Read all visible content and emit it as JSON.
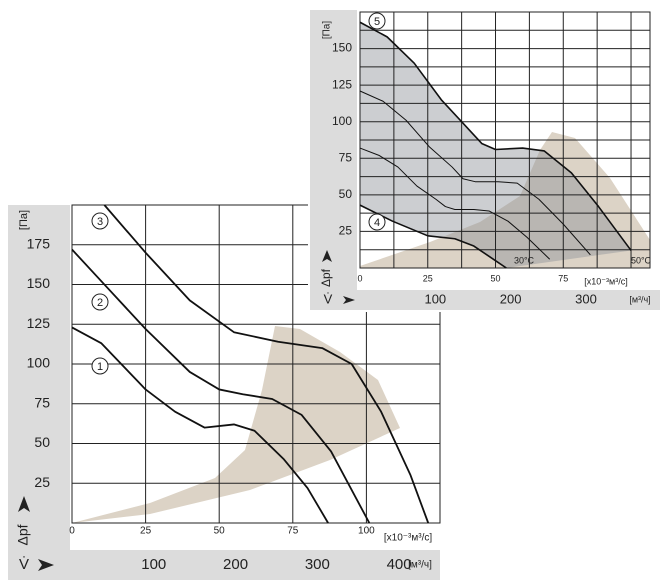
{
  "chart_data": [
    {
      "type": "line",
      "ylabel": "[Па]",
      "ylabel2": "Δpf",
      "xlabel": "[x10⁻³м³/с]",
      "xlabel2": "V̇",
      "x2label": "[м³/ч]",
      "xlim": [
        0,
        125
      ],
      "ylim": [
        0,
        200
      ],
      "x2lim": [
        0,
        450
      ],
      "xticks": [
        0,
        25,
        50,
        75,
        100
      ],
      "yticks": [
        25,
        50,
        75,
        100,
        125,
        150,
        175
      ],
      "x2ticks": [
        100,
        200,
        300,
        400
      ],
      "xgrid": [
        25,
        50,
        75,
        100
      ],
      "ygrid": [
        25,
        50,
        75,
        100,
        125,
        150,
        175
      ],
      "series": [
        {
          "name": "1",
          "color": "#111",
          "x": [
            0,
            10,
            25,
            35,
            45,
            55,
            62,
            72,
            80,
            87
          ],
          "values": [
            123,
            113,
            84,
            70,
            60,
            62,
            58,
            40,
            22,
            0
          ]
        },
        {
          "name": "2",
          "color": "#111",
          "x": [
            0,
            12,
            25,
            40,
            50,
            58,
            68,
            78,
            88,
            101
          ],
          "values": [
            172,
            148,
            122,
            95,
            84,
            81,
            78,
            68,
            45,
            0
          ]
        },
        {
          "name": "3",
          "color": "#111",
          "x": [
            11,
            25,
            40,
            55,
            70,
            85,
            95,
            105,
            115,
            121
          ],
          "values": [
            200,
            170,
            140,
            120,
            114,
            110,
            100,
            70,
            30,
            0
          ]
        }
      ]
    },
    {
      "type": "line",
      "ylabel": "[Па]",
      "ylabel2": "Δpf",
      "xlabel": "[x10⁻³м³/с]",
      "xlabel2": "V̇",
      "x2label": "[м³/ч]",
      "xlim": [
        0,
        107
      ],
      "ylim": [
        0,
        175
      ],
      "x2lim": [
        0,
        385
      ],
      "xticks": [
        0,
        25,
        50,
        75
      ],
      "yticks": [
        25,
        50,
        75,
        100,
        125,
        150
      ],
      "x2ticks": [
        100,
        200,
        300
      ],
      "xgrid": [
        12.5,
        25,
        37.5,
        50,
        62.5,
        75,
        87.5,
        100
      ],
      "ygrid": [
        12.5,
        25,
        37.5,
        50,
        62.5,
        75,
        87.5,
        100,
        112.5,
        125,
        137.5,
        150,
        162.5
      ],
      "annotations": [
        "30°C",
        "50°C"
      ],
      "series": [
        {
          "name": "5",
          "color": "#111",
          "x": [
            0,
            10,
            20,
            30,
            40,
            45,
            50,
            60,
            68,
            78,
            88,
            100
          ],
          "values": [
            168,
            158,
            140,
            115,
            95,
            85,
            81,
            82,
            80,
            65,
            42,
            12
          ]
        },
        {
          "color": "#111",
          "x": [
            0,
            8.5,
            17,
            25.5,
            34,
            38,
            42.5,
            51,
            58,
            66,
            75,
            85
          ],
          "values": [
            121,
            114,
            101,
            83,
            69,
            61,
            59,
            59,
            58,
            47,
            30,
            9
          ]
        },
        {
          "color": "#111",
          "x": [
            0,
            7,
            14,
            21,
            28,
            31.5,
            35,
            42,
            47.6,
            54.6,
            61.6,
            70
          ],
          "values": [
            82,
            77,
            69,
            56,
            47,
            42,
            40,
            40,
            39,
            32,
            21,
            6
          ]
        },
        {
          "name": "4",
          "color": "#111",
          "x": [
            0,
            12,
            25,
            35,
            42,
            50,
            54
          ],
          "values": [
            43,
            32,
            22,
            20,
            15,
            5,
            0
          ]
        }
      ]
    }
  ]
}
